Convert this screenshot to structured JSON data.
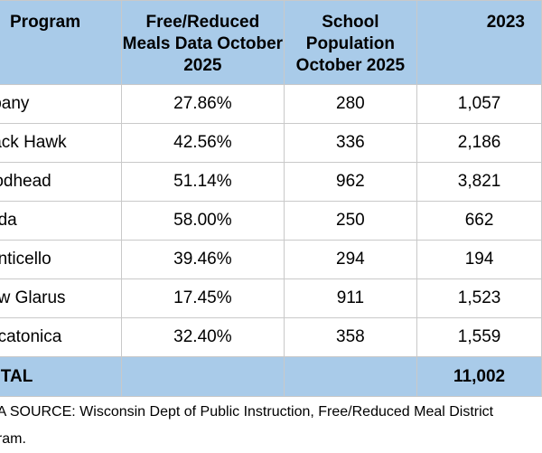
{
  "table": {
    "headers": [
      "Program",
      "Free/Reduced Meals Data October 2025",
      "School Population October 2025",
      "2023"
    ],
    "rows": [
      [
        "lbany",
        "27.86%",
        "280",
        "1,057"
      ],
      [
        "lack Hawk",
        "42.56%",
        "336",
        "2,186"
      ],
      [
        "rodhead",
        "51.14%",
        "962",
        "3,821"
      ],
      [
        "uda",
        "58.00%",
        "250",
        "662"
      ],
      [
        "onticello",
        "39.46%",
        "294",
        "194"
      ],
      [
        "ew Glarus",
        "17.45%",
        "911",
        "1,523"
      ],
      [
        "ecatonica",
        "32.40%",
        "358",
        "1,559"
      ]
    ],
    "total": [
      "OTAL",
      "",
      "",
      "11,002"
    ]
  },
  "source_note": {
    "line1": "TA SOURCE: Wisconsin Dept of Public Instruction, Free/Reduced Meal District",
    "line2": "gram."
  },
  "colors": {
    "header_bg": "#a9cbe9",
    "total_bg": "#a9cbe9",
    "grid": "#c9c9c9"
  }
}
